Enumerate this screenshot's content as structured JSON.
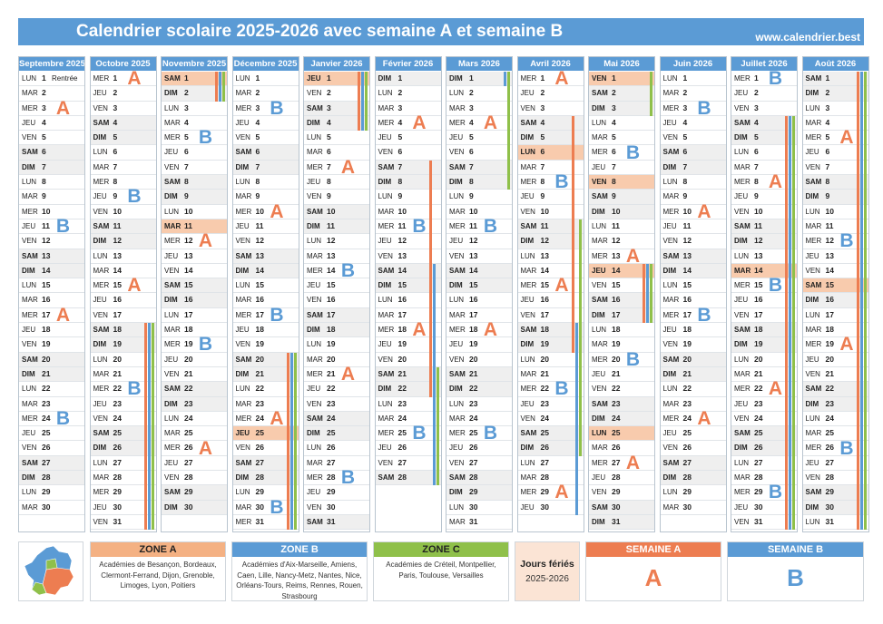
{
  "header": {
    "title": "Calendrier scolaire 2025-2026 avec semaine A et semaine B",
    "site": "www.calendrier.best"
  },
  "colors": {
    "zone_a": "#ed7d51",
    "zone_b": "#5b9bd5",
    "zone_c": "#8fc04a",
    "week_a": "#ed7d51",
    "week_b": "#5b9bd5",
    "header_bg": "#5b9bd5",
    "holiday": "#f8cbad",
    "weekend": "#efefef"
  },
  "months": [
    {
      "name": "Septembre 2025",
      "year": 2025,
      "month": 9,
      "notes": {
        "1": "Rentrée"
      },
      "weeks": [
        {
          "label": "A",
          "day": 3
        },
        {
          "label": "B",
          "day": 11
        },
        {
          "label": "A",
          "day": 17
        },
        {
          "label": "B",
          "day": 24
        }
      ],
      "bars": []
    },
    {
      "name": "Octobre 2025",
      "year": 2025,
      "month": 10,
      "notes": {},
      "weeks": [
        {
          "label": "A",
          "day": 1
        },
        {
          "label": "B",
          "day": 9
        },
        {
          "label": "A",
          "day": 15
        },
        {
          "label": "B",
          "day": 22
        }
      ],
      "bars": [
        {
          "zone": "A",
          "start": 18,
          "end": 31
        },
        {
          "zone": "B",
          "start": 18,
          "end": 31
        },
        {
          "zone": "C",
          "start": 18,
          "end": 31
        }
      ]
    },
    {
      "name": "Novembre 2025",
      "year": 2025,
      "month": 11,
      "notes": {},
      "weeks": [
        {
          "label": "B",
          "day": 5
        },
        {
          "label": "A",
          "day": 12
        },
        {
          "label": "B",
          "day": 19
        },
        {
          "label": "A",
          "day": 26
        }
      ],
      "bars": [
        {
          "zone": "A",
          "start": 1,
          "end": 2
        },
        {
          "zone": "B",
          "start": 1,
          "end": 2
        },
        {
          "zone": "C",
          "start": 1,
          "end": 2
        }
      ]
    },
    {
      "name": "Décembre 2025",
      "year": 2025,
      "month": 12,
      "notes": {},
      "weeks": [
        {
          "label": "B",
          "day": 3
        },
        {
          "label": "A",
          "day": 10
        },
        {
          "label": "B",
          "day": 17
        },
        {
          "label": "A",
          "day": 24
        },
        {
          "label": "B",
          "day": 30
        }
      ],
      "bars": [
        {
          "zone": "A",
          "start": 20,
          "end": 31
        },
        {
          "zone": "B",
          "start": 20,
          "end": 31
        },
        {
          "zone": "C",
          "start": 20,
          "end": 31
        }
      ]
    },
    {
      "name": "Janvier 2026",
      "year": 2026,
      "month": 1,
      "notes": {},
      "weeks": [
        {
          "label": "A",
          "day": 7
        },
        {
          "label": "B",
          "day": 14
        },
        {
          "label": "A",
          "day": 21
        },
        {
          "label": "B",
          "day": 28
        }
      ],
      "bars": [
        {
          "zone": "A",
          "start": 1,
          "end": 4
        },
        {
          "zone": "B",
          "start": 1,
          "end": 4
        },
        {
          "zone": "C",
          "start": 1,
          "end": 4
        }
      ]
    },
    {
      "name": "Février 2026",
      "year": 2026,
      "month": 2,
      "notes": {},
      "weeks": [
        {
          "label": "A",
          "day": 4
        },
        {
          "label": "B",
          "day": 11
        },
        {
          "label": "A",
          "day": 18
        },
        {
          "label": "B",
          "day": 25
        }
      ],
      "bars": [
        {
          "zone": "A",
          "start": 7,
          "end": 22
        },
        {
          "zone": "B",
          "start": 14,
          "end": 28
        },
        {
          "zone": "C",
          "start": 21,
          "end": 28
        }
      ]
    },
    {
      "name": "Mars 2026",
      "year": 2026,
      "month": 3,
      "notes": {},
      "weeks": [
        {
          "label": "A",
          "day": 4
        },
        {
          "label": "B",
          "day": 11
        },
        {
          "label": "A",
          "day": 18
        },
        {
          "label": "B",
          "day": 25
        }
      ],
      "bars": [
        {
          "zone": "B",
          "start": 1,
          "end": 1
        },
        {
          "zone": "C",
          "start": 1,
          "end": 8
        }
      ]
    },
    {
      "name": "Avril 2026",
      "year": 2026,
      "month": 4,
      "notes": {},
      "weeks": [
        {
          "label": "A",
          "day": 1
        },
        {
          "label": "B",
          "day": 8
        },
        {
          "label": "A",
          "day": 15
        },
        {
          "label": "B",
          "day": 22
        },
        {
          "label": "A",
          "day": 29
        }
      ],
      "bars": [
        {
          "zone": "A",
          "start": 4,
          "end": 19
        },
        {
          "zone": "B",
          "start": 18,
          "end": 30
        },
        {
          "zone": "C",
          "start": 11,
          "end": 26
        }
      ]
    },
    {
      "name": "Mai 2026",
      "year": 2026,
      "month": 5,
      "notes": {},
      "weeks": [
        {
          "label": "B",
          "day": 6
        },
        {
          "label": "A",
          "day": 13
        },
        {
          "label": "B",
          "day": 20
        },
        {
          "label": "A",
          "day": 27
        }
      ],
      "bars": [
        {
          "zone": "C",
          "start": 1,
          "end": 3
        },
        {
          "zone": "A",
          "start": 14,
          "end": 17
        },
        {
          "zone": "B",
          "start": 14,
          "end": 17
        },
        {
          "zone": "C",
          "start": 14,
          "end": 17
        }
      ]
    },
    {
      "name": "Juin 2026",
      "year": 2026,
      "month": 6,
      "notes": {},
      "weeks": [
        {
          "label": "B",
          "day": 3
        },
        {
          "label": "A",
          "day": 10
        },
        {
          "label": "B",
          "day": 17
        },
        {
          "label": "A",
          "day": 24
        }
      ],
      "bars": []
    },
    {
      "name": "Juillet 2026",
      "year": 2026,
      "month": 7,
      "notes": {},
      "weeks": [
        {
          "label": "B",
          "day": 1
        },
        {
          "label": "A",
          "day": 8
        },
        {
          "label": "B",
          "day": 15
        },
        {
          "label": "A",
          "day": 22
        },
        {
          "label": "B",
          "day": 29
        }
      ],
      "bars": [
        {
          "zone": "A",
          "start": 4,
          "end": 31
        },
        {
          "zone": "B",
          "start": 4,
          "end": 31
        },
        {
          "zone": "C",
          "start": 4,
          "end": 31
        }
      ]
    },
    {
      "name": "Août 2026",
      "year": 2026,
      "month": 8,
      "notes": {},
      "weeks": [
        {
          "label": "A",
          "day": 5
        },
        {
          "label": "B",
          "day": 12
        },
        {
          "label": "A",
          "day": 19
        },
        {
          "label": "B",
          "day": 26
        }
      ],
      "bars": [
        {
          "zone": "A",
          "start": 1,
          "end": 31
        },
        {
          "zone": "B",
          "start": 1,
          "end": 31
        },
        {
          "zone": "C",
          "start": 1,
          "end": 31
        }
      ]
    }
  ],
  "holidays": [
    "2025-11-01",
    "2025-11-11",
    "2025-12-25",
    "2026-01-01",
    "2026-04-06",
    "2026-05-01",
    "2026-05-08",
    "2026-05-14",
    "2026-05-25",
    "2026-07-14",
    "2026-08-15"
  ],
  "day_abbr": [
    "DIM",
    "LUN",
    "MAR",
    "MER",
    "JEU",
    "VEN",
    "SAM"
  ],
  "legend": {
    "zone_a": {
      "title": "ZONE A",
      "text": "Académies de Besançon, Bordeaux, Clermont-Ferrand, Dijon, Grenoble, Limoges, Lyon, Poitiers"
    },
    "zone_b": {
      "title": "ZONE B",
      "text": "Académies d'Aix-Marseille, Amiens, Caen, Lille, Nancy-Metz, Nantes, Nice, Orléans-Tours, Reims, Rennes, Rouen, Strasbourg"
    },
    "zone_c": {
      "title": "ZONE C",
      "text": "Académies de Créteil, Montpellier, Paris, Toulouse, Versailles"
    },
    "jours_feries": {
      "title": "Jours fériés",
      "subtitle": "2025-2026"
    },
    "semaine_a": {
      "title": "SEMAINE A",
      "letter": "A"
    },
    "semaine_b": {
      "title": "SEMAINE B",
      "letter": "B"
    }
  }
}
